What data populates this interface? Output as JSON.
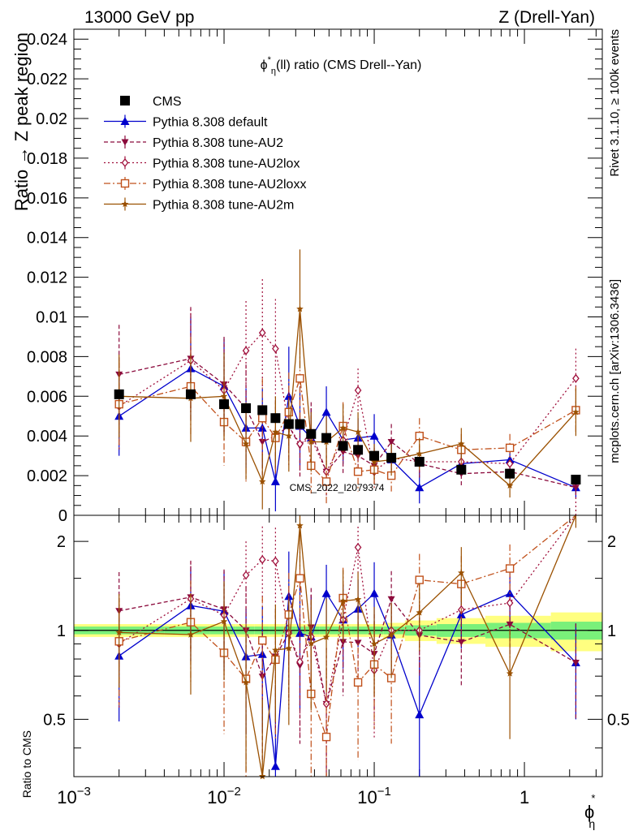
{
  "header": {
    "left": "13000 GeV pp",
    "right": "Z (Drell-Yan)"
  },
  "side_labels": {
    "rivet": "Rivet 3.1.10, ≥ 100k events",
    "mcplots": "mcplots.cern.ch [arXiv:1306.3436]"
  },
  "chart_data": [
    {
      "type": "line",
      "panel": "main",
      "title": "ϕη*(ll) ratio (CMS Drell--Yan)",
      "title_main": "ϕ",
      "title_sup": "*",
      "title_sub": "η",
      "title_rest": "(ll) ratio (CMS Drell--Yan)",
      "watermark": "CMS_2022_I2079374",
      "ylabel": "Ratio → Z peak region",
      "xlabel_main": "ϕ",
      "xlabel_sup": "*",
      "xlabel_sub": "η",
      "xscale": "log",
      "xlim": [
        0.001,
        3.3
      ],
      "ylim": [
        0,
        0.0245
      ],
      "yticks": [
        0,
        0.002,
        0.004,
        0.006,
        0.008,
        0.01,
        0.012,
        0.014,
        0.016,
        0.018,
        0.02,
        0.022,
        0.024
      ],
      "ytick_labels": [
        "0",
        "0.002",
        "0.004",
        "0.006",
        "0.008",
        "0.01",
        "0.012",
        "0.014",
        "0.016",
        "0.018",
        "0.02",
        "0.022",
        "0.024"
      ],
      "x": [
        0.002,
        0.006,
        0.01,
        0.014,
        0.018,
        0.022,
        0.027,
        0.032,
        0.038,
        0.048,
        0.062,
        0.078,
        0.1,
        0.13,
        0.2,
        0.38,
        0.8,
        2.2
      ],
      "legend_position": "top-left",
      "series": [
        {
          "name": "CMS",
          "color": "#000000",
          "marker": "square-filled",
          "dash": "none",
          "values": [
            0.0061,
            0.0061,
            0.0056,
            0.0054,
            0.0053,
            0.0049,
            0.0046,
            0.0046,
            0.0041,
            0.0039,
            0.0035,
            0.0033,
            0.003,
            0.0029,
            0.0027,
            0.0023,
            0.0021,
            0.0018
          ],
          "errors": [
            0,
            0,
            0,
            0,
            0,
            0,
            0,
            0,
            0,
            0,
            0,
            0,
            0,
            0,
            0,
            0,
            0,
            0
          ]
        },
        {
          "name": "Pythia 8.308 default",
          "color": "#0000cc",
          "marker": "triangle-up-filled",
          "dash": "none",
          "values": [
            0.005,
            0.0074,
            0.0065,
            0.0044,
            0.0044,
            0.0017,
            0.006,
            0.0045,
            0.0039,
            0.0052,
            0.0038,
            0.0039,
            0.004,
            0.0028,
            0.0014,
            0.0026,
            0.0028,
            0.0014
          ],
          "errors": [
            0.002,
            0.0026,
            0.0024,
            0.002,
            0.002,
            0.0015,
            0.0025,
            0.002,
            0.0015,
            0.0013,
            0.0012,
            0.001,
            0.0011,
            0.0008,
            0.0008,
            0.0006,
            0.0006,
            0.0005
          ]
        },
        {
          "name": "Pythia 8.308 tune-AU2",
          "color": "#8b0a3c",
          "marker": "triangle-down-filled",
          "dash": "5,3",
          "values": [
            0.0071,
            0.0079,
            0.0066,
            0.0054,
            0.0037,
            0.004,
            0.0045,
            0.0035,
            0.0042,
            0.0022,
            0.0032,
            0.003,
            0.0025,
            0.0037,
            0.0026,
            0.0021,
            0.0022,
            0.0014
          ],
          "errors": [
            0.0025,
            0.0026,
            0.0024,
            0.0022,
            0.0018,
            0.0018,
            0.0018,
            0.0016,
            0.0015,
            0.0012,
            0.0011,
            0.0009,
            0.0009,
            0.0009,
            0.0007,
            0.0006,
            0.0005,
            0.0005
          ]
        },
        {
          "name": "Pythia 8.308 tune-AU2lox",
          "color": "#a0103c",
          "marker": "diamond-open",
          "dash": "2,3",
          "values": [
            0.0055,
            0.0078,
            0.0063,
            0.0083,
            0.0092,
            0.0084,
            0.0045,
            0.0036,
            0.0039,
            0.0022,
            0.0038,
            0.0063,
            0.0022,
            0.0029,
            0.0027,
            0.0027,
            0.0026,
            0.0069
          ],
          "errors": [
            0.0022,
            0.0026,
            0.0025,
            0.0025,
            0.0027,
            0.0025,
            0.002,
            0.0016,
            0.0015,
            0.0012,
            0.0012,
            0.0011,
            0.0009,
            0.0009,
            0.0008,
            0.0007,
            0.0006,
            0.0015
          ]
        },
        {
          "name": "Pythia 8.308 tune-AU2loxx",
          "color": "#c0501a",
          "marker": "square-open",
          "dash": "8,3,2,3",
          "values": [
            0.0056,
            0.0065,
            0.0047,
            0.0037,
            0.0049,
            0.0039,
            0.0052,
            0.0069,
            0.0025,
            0.0017,
            0.0045,
            0.0022,
            0.0023,
            0.002,
            0.004,
            0.0033,
            0.0034,
            0.0053
          ],
          "errors": [
            0.0022,
            0.0025,
            0.0022,
            0.002,
            0.002,
            0.0018,
            0.002,
            0.0022,
            0.0014,
            0.0012,
            0.0012,
            0.001,
            0.0009,
            0.0008,
            0.0009,
            0.0008,
            0.0007,
            0.0012
          ]
        },
        {
          "name": "Pythia 8.308 tune-AU2m",
          "color": "#9a5000",
          "marker": "star-filled",
          "dash": "none",
          "values": [
            0.006,
            0.0059,
            0.006,
            0.0036,
            0.0017,
            0.0042,
            0.004,
            0.0104,
            0.0037,
            0.0037,
            0.0044,
            0.0042,
            0.0027,
            0.0028,
            0.0031,
            0.0036,
            0.0015,
            0.0052
          ],
          "errors": [
            0.0021,
            0.0022,
            0.0022,
            0.0018,
            0.0014,
            0.0018,
            0.0018,
            0.003,
            0.0015,
            0.0013,
            0.0012,
            0.001,
            0.0009,
            0.0008,
            0.0008,
            0.0008,
            0.0006,
            0.0012
          ]
        }
      ]
    },
    {
      "type": "line",
      "panel": "ratio",
      "ylabel": "Ratio to CMS",
      "xscale": "log",
      "xlim": [
        0.001,
        3.3
      ],
      "ylim": [
        0.32,
        2.45
      ],
      "yscale": "log",
      "yticks": [
        0.5,
        1,
        2
      ],
      "ytick_labels": [
        "0.5",
        "1",
        "2"
      ],
      "xticks": [
        0.001,
        0.01,
        0.1,
        1
      ],
      "xtick_labels_base": "10",
      "xtick_labels_exp": [
        "−3",
        "−2",
        "−1",
        ""
      ],
      "xtick_labels_plain": [
        "",
        "",
        "",
        "1"
      ],
      "band_x_edges": [
        0.001,
        0.004,
        0.008,
        0.012,
        0.016,
        0.02,
        0.025,
        0.03,
        0.035,
        0.043,
        0.055,
        0.07,
        0.09,
        0.115,
        0.16,
        0.26,
        0.55,
        1.5,
        3.3
      ],
      "band_inner": [
        0.03,
        0.03,
        0.03,
        0.03,
        0.03,
        0.03,
        0.03,
        0.03,
        0.03,
        0.03,
        0.03,
        0.03,
        0.03,
        0.03,
        0.04,
        0.05,
        0.06,
        0.07
      ],
      "band_outer": [
        0.05,
        0.05,
        0.05,
        0.05,
        0.05,
        0.05,
        0.05,
        0.05,
        0.05,
        0.05,
        0.05,
        0.05,
        0.05,
        0.06,
        0.08,
        0.1,
        0.12,
        0.15
      ],
      "band_colors": {
        "inner": "#7af07a",
        "outer": "#ffff80"
      }
    }
  ]
}
